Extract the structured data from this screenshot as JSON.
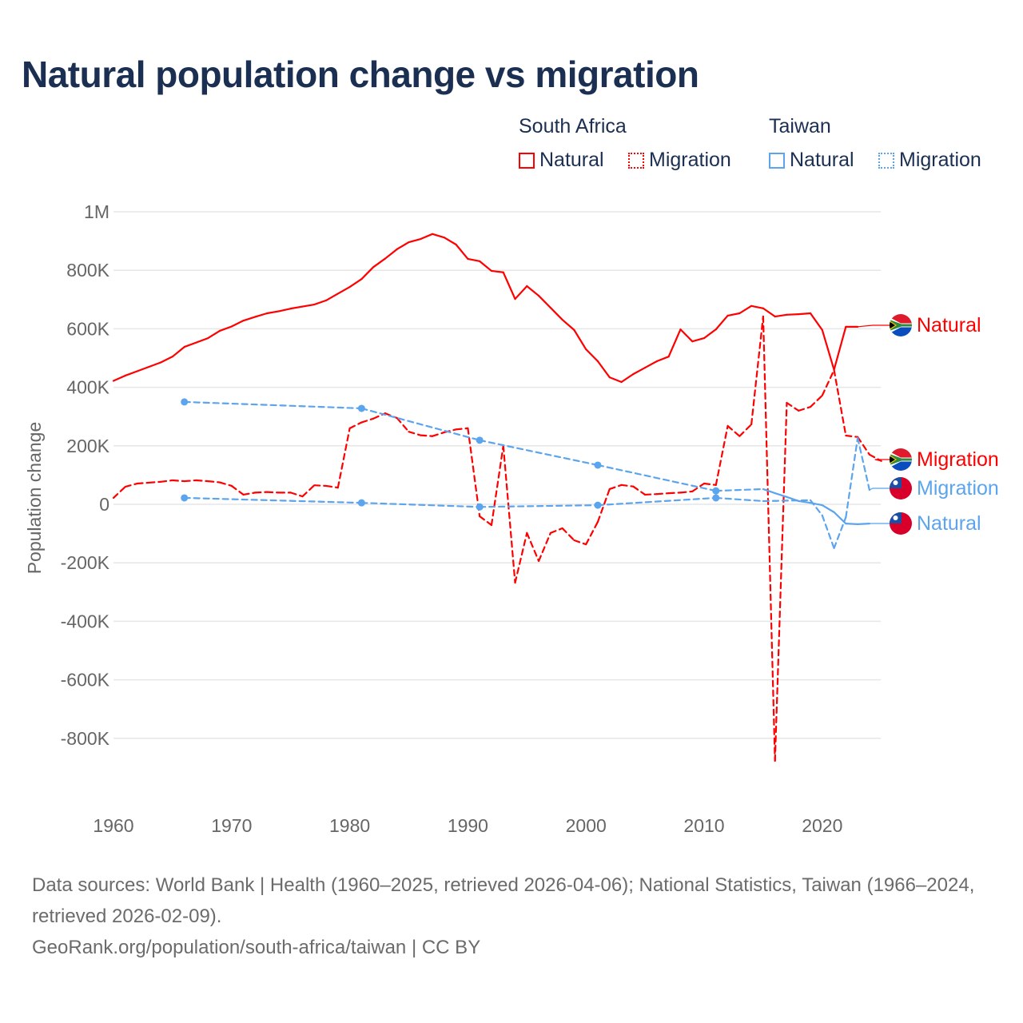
{
  "title": "Natural population change vs migration",
  "legend": {
    "groups": [
      {
        "country": "South Africa",
        "items": [
          "Natural",
          "Migration"
        ],
        "color": "#ff0000"
      },
      {
        "country": "Taiwan",
        "items": [
          "Natural",
          "Migration"
        ],
        "color": "#5ba4ee"
      }
    ]
  },
  "footer": {
    "sources": "Data sources: World Bank | Health (1960–2025, retrieved 2026-04-06); National Statistics, Taiwan (1966–2024, retrieved 2026-02-09).",
    "credit": "GeoRank.org/population/south-africa/taiwan | CC BY"
  },
  "chart_data": {
    "type": "line",
    "title": "Natural population change vs migration",
    "xlabel": "",
    "ylabel": "Population change",
    "xlim": [
      1960,
      2025
    ],
    "ylim": [
      -1000000,
      1000000
    ],
    "x_ticks": [
      "1960",
      "1970",
      "1980",
      "1990",
      "2000",
      "2010",
      "2020"
    ],
    "y_ticks": [
      {
        "v": 1000000,
        "label": "1M"
      },
      {
        "v": 800000,
        "label": "800K"
      },
      {
        "v": 600000,
        "label": "600K"
      },
      {
        "v": 400000,
        "label": "400K"
      },
      {
        "v": 200000,
        "label": "200K"
      },
      {
        "v": 0,
        "label": "0"
      },
      {
        "v": -200000,
        "label": "-200K"
      },
      {
        "v": -400000,
        "label": "-400K"
      },
      {
        "v": -600000,
        "label": "-600K"
      },
      {
        "v": -800000,
        "label": "-800K"
      }
    ],
    "grid": true,
    "legend_position": "top-right",
    "series": [
      {
        "name": "South Africa Natural",
        "label": "Natural",
        "country": "South Africa",
        "color": "#ff0000",
        "style": "solid",
        "points": [
          [
            1960,
            422000
          ],
          [
            1961,
            440000
          ],
          [
            1962,
            455000
          ],
          [
            1963,
            470000
          ],
          [
            1964,
            485000
          ],
          [
            1965,
            505000
          ],
          [
            1966,
            538000
          ],
          [
            1967,
            553000
          ],
          [
            1968,
            568000
          ],
          [
            1969,
            593000
          ],
          [
            1970,
            608000
          ],
          [
            1971,
            628000
          ],
          [
            1972,
            641000
          ],
          [
            1973,
            653000
          ],
          [
            1974,
            660000
          ],
          [
            1975,
            669000
          ],
          [
            1976,
            676000
          ],
          [
            1977,
            683000
          ],
          [
            1978,
            697000
          ],
          [
            1979,
            720000
          ],
          [
            1980,
            743000
          ],
          [
            1981,
            770000
          ],
          [
            1982,
            811000
          ],
          [
            1983,
            840000
          ],
          [
            1984,
            872000
          ],
          [
            1985,
            896000
          ],
          [
            1986,
            907000
          ],
          [
            1987,
            924000
          ],
          [
            1988,
            912000
          ],
          [
            1989,
            888000
          ],
          [
            1990,
            839000
          ],
          [
            1991,
            831000
          ],
          [
            1992,
            798000
          ],
          [
            1993,
            793000
          ],
          [
            1994,
            702000
          ],
          [
            1995,
            746000
          ],
          [
            1996,
            713000
          ],
          [
            1997,
            672000
          ],
          [
            1998,
            631000
          ],
          [
            1999,
            596000
          ],
          [
            2000,
            530000
          ],
          [
            2001,
            489000
          ],
          [
            2002,
            434000
          ],
          [
            2003,
            418000
          ],
          [
            2004,
            445000
          ],
          [
            2005,
            467000
          ],
          [
            2006,
            489000
          ],
          [
            2007,
            505000
          ],
          [
            2008,
            598000
          ],
          [
            2009,
            557000
          ],
          [
            2010,
            568000
          ],
          [
            2011,
            598000
          ],
          [
            2012,
            645000
          ],
          [
            2013,
            653000
          ],
          [
            2014,
            678000
          ],
          [
            2015,
            670000
          ],
          [
            2016,
            642000
          ],
          [
            2017,
            648000
          ],
          [
            2018,
            650000
          ],
          [
            2019,
            653000
          ],
          [
            2020,
            596000
          ],
          [
            2021,
            460000
          ],
          [
            2022,
            607000
          ],
          [
            2023,
            607000
          ]
        ]
      },
      {
        "name": "South Africa Migration",
        "label": "Migration",
        "country": "South Africa",
        "color": "#ff0000",
        "style": "dashed",
        "points": [
          [
            1960,
            22000
          ],
          [
            1961,
            60000
          ],
          [
            1962,
            71000
          ],
          [
            1963,
            74000
          ],
          [
            1964,
            77000
          ],
          [
            1965,
            82000
          ],
          [
            1966,
            79000
          ],
          [
            1967,
            82000
          ],
          [
            1968,
            79000
          ],
          [
            1969,
            75000
          ],
          [
            1970,
            63000
          ],
          [
            1971,
            33000
          ],
          [
            1972,
            40000
          ],
          [
            1973,
            42000
          ],
          [
            1974,
            40000
          ],
          [
            1975,
            40000
          ],
          [
            1976,
            27000
          ],
          [
            1977,
            65000
          ],
          [
            1978,
            63000
          ],
          [
            1979,
            57000
          ],
          [
            1980,
            260000
          ],
          [
            1981,
            280000
          ],
          [
            1982,
            293000
          ],
          [
            1983,
            311000
          ],
          [
            1984,
            295000
          ],
          [
            1985,
            248000
          ],
          [
            1986,
            236000
          ],
          [
            1987,
            233000
          ],
          [
            1988,
            246000
          ],
          [
            1989,
            256000
          ],
          [
            1990,
            260000
          ],
          [
            1991,
            -41000
          ],
          [
            1992,
            -71000
          ],
          [
            1993,
            200000
          ],
          [
            1994,
            -268000
          ],
          [
            1995,
            -98000
          ],
          [
            1996,
            -194000
          ],
          [
            1997,
            -98000
          ],
          [
            1998,
            -82000
          ],
          [
            1999,
            -123000
          ],
          [
            2000,
            -137000
          ],
          [
            2001,
            -60000
          ],
          [
            2002,
            52000
          ],
          [
            2003,
            66000
          ],
          [
            2004,
            61000
          ],
          [
            2005,
            33000
          ],
          [
            2006,
            35000
          ],
          [
            2007,
            38000
          ],
          [
            2008,
            40000
          ],
          [
            2009,
            44000
          ],
          [
            2010,
            71000
          ],
          [
            2011,
            66000
          ],
          [
            2012,
            268000
          ],
          [
            2013,
            233000
          ],
          [
            2014,
            273000
          ],
          [
            2015,
            642000
          ],
          [
            2016,
            -877000
          ],
          [
            2017,
            347000
          ],
          [
            2018,
            320000
          ],
          [
            2019,
            333000
          ],
          [
            2020,
            372000
          ],
          [
            2021,
            459000
          ],
          [
            2022,
            235000
          ],
          [
            2023,
            230000
          ],
          [
            2024,
            170000
          ],
          [
            2025,
            148000
          ]
        ]
      },
      {
        "name": "Taiwan Natural",
        "label": "Natural",
        "country": "Taiwan",
        "color": "#5ba4ee",
        "style": "solid",
        "points": [
          [
            1966,
            350000
          ],
          [
            1981,
            328000
          ],
          [
            1991,
            219000
          ],
          [
            2001,
            134000
          ],
          [
            2011,
            46000
          ],
          [
            2015,
            52000
          ],
          [
            2016,
            38000
          ],
          [
            2017,
            25000
          ],
          [
            2018,
            11000
          ],
          [
            2019,
            5000
          ],
          [
            2020,
            -3000
          ],
          [
            2021,
            -27000
          ],
          [
            2022,
            -66000
          ],
          [
            2023,
            -68000
          ],
          [
            2024,
            -66000
          ]
        ]
      },
      {
        "name": "Taiwan Migration",
        "label": "Migration",
        "country": "Taiwan",
        "color": "#5ba4ee",
        "style": "dashed",
        "points": [
          [
            1966,
            22000
          ],
          [
            1981,
            5000
          ],
          [
            1991,
            -9000
          ],
          [
            2001,
            -3000
          ],
          [
            2011,
            22000
          ],
          [
            2015,
            11000
          ],
          [
            2019,
            14000
          ],
          [
            2020,
            -38000
          ],
          [
            2021,
            -150000
          ],
          [
            2022,
            -44000
          ],
          [
            2023,
            227000
          ],
          [
            2024,
            49000
          ]
        ]
      }
    ]
  }
}
